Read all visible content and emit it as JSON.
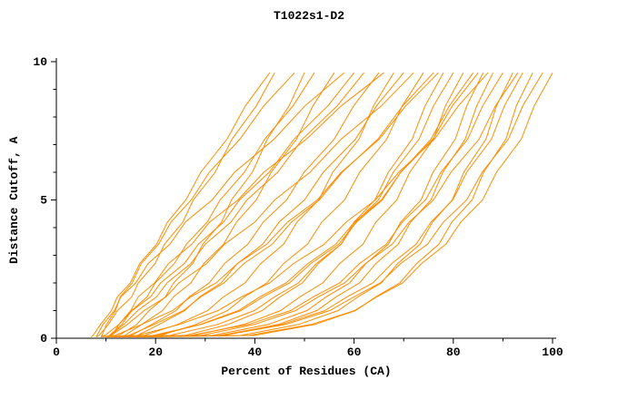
{
  "window": {
    "background": "#ffffff"
  },
  "chart_data": {
    "type": "line",
    "title": "T1022s1-D2",
    "xlabel": "Percent of Residues (CA)",
    "ylabel": "Distance Cutoff, A",
    "xlim": [
      0,
      100
    ],
    "ylim": [
      0,
      10
    ],
    "x_ticks": [
      0,
      20,
      40,
      60,
      80,
      100
    ],
    "x_minor_ticks": [
      10,
      30,
      50,
      70,
      90
    ],
    "y_ticks": [
      0,
      5,
      10
    ],
    "y_minor_ticks": [
      1,
      2,
      3,
      4,
      6,
      7,
      8,
      9
    ],
    "line_color": "#ff8c00",
    "axis_color": "#000000",
    "grid": false,
    "legend": false,
    "y": [
      0.05,
      0.1,
      0.5,
      1.0,
      1.5,
      2.0,
      2.7,
      3.4,
      4.2,
      5.0,
      6.0,
      7.2,
      8.4,
      9.6
    ],
    "series": [
      {
        "x": [
          8,
          8.6,
          10.5,
          12.3,
          15.2,
          16.5,
          19.9,
          21.8,
          25.5,
          27.6,
          32.0,
          35.4,
          40.3,
          44
        ]
      },
      {
        "x": [
          9,
          9.2,
          10.1,
          11.9,
          12.9,
          15.3,
          17.1,
          20.6,
          23.1,
          27.2,
          30.8,
          37.0,
          41.8,
          48
        ]
      },
      {
        "x": [
          10,
          10.7,
          13.2,
          15.2,
          18.3,
          19.9,
          23.8,
          26.2,
          30.4,
          33.0,
          37.9,
          42.0,
          47.7,
          52
        ]
      },
      {
        "x": [
          12,
          13.8,
          17.2,
          21.4,
          23.6,
          27.1,
          29.7,
          33.7,
          36.3,
          40.3,
          43.3,
          48.4,
          51.7,
          56
        ]
      },
      {
        "x": [
          8,
          8.2,
          9.4,
          11.7,
          13.0,
          16.0,
          18.5,
          22.9,
          26.0,
          31.4,
          35.9,
          43.9,
          50.1,
          58
        ]
      },
      {
        "x": [
          11,
          12.6,
          16.2,
          18.7,
          22.0,
          23.6,
          27.5,
          29.5,
          33.3,
          35.3,
          39.5,
          42.5,
          46.9,
          50
        ]
      },
      {
        "x": [
          10,
          10.9,
          13.6,
          16.4,
          20.2,
          22.3,
          27.1,
          30.0,
          35.2,
          38.4,
          44.6,
          49.6,
          56.6,
          62
        ]
      },
      {
        "x": [
          13,
          15.1,
          19.2,
          24.1,
          26.8,
          30.8,
          33.9,
          38.6,
          41.7,
          46.4,
          49.9,
          56.0,
          59.9,
          65
        ]
      },
      {
        "x": [
          12,
          17.7,
          24.4,
          30.5,
          33.7,
          38.0,
          41.2,
          45.8,
          48.5,
          52.9,
          55.7,
          61.0,
          63.9,
          68
        ]
      },
      {
        "x": [
          14,
          16.3,
          20.7,
          25.9,
          28.9,
          33.2,
          36.5,
          41.6,
          44.9,
          50.0,
          53.8,
          60.3,
          64.5,
          70
        ]
      },
      {
        "x": [
          10,
          11.0,
          14.3,
          17.7,
          22.1,
          24.7,
          30.3,
          33.9,
          40.0,
          44.0,
          51.1,
          57.4,
          65.5,
          72
        ]
      },
      {
        "x": [
          15,
          21.0,
          28.1,
          34.5,
          37.9,
          42.4,
          45.8,
          50.6,
          53.5,
          58.1,
          61.1,
          66.6,
          69.7,
          74
        ]
      },
      {
        "x": [
          12,
          14.6,
          19.7,
          25.6,
          29.1,
          33.8,
          37.8,
          43.5,
          47.4,
          53.0,
          57.6,
          64.8,
          69.8,
          76
        ]
      },
      {
        "x": [
          16,
          26.0,
          34.6,
          41.5,
          45.1,
          49.6,
          52.8,
          57.4,
          60.0,
          64.2,
          66.9,
          71.7,
          74.3,
          78
        ]
      },
      {
        "x": [
          11,
          11.2,
          12.6,
          15.0,
          16.5,
          19.8,
          22.6,
          27.3,
          30.9,
          36.6,
          41.8,
          50.4,
          57.4,
          66
        ]
      },
      {
        "x": [
          12,
          22.9,
          32.5,
          39.9,
          44.0,
          48.8,
          52.4,
          57.4,
          60.3,
          64.9,
          67.9,
          73.1,
          76.0,
          80
        ]
      },
      {
        "x": [
          14,
          27.7,
          37.8,
          45.2,
          49.1,
          53.7,
          57.1,
          61.8,
          64.4,
          68.6,
          71.2,
          76.0,
          78.4,
          82
        ]
      },
      {
        "x": [
          10,
          19.5,
          29.2,
          37.2,
          41.7,
          47.0,
          51.3,
          56.9,
          60.5,
          65.7,
          69.4,
          75.5,
          79.2,
          84
        ]
      },
      {
        "x": [
          13,
          31.5,
          42.7,
          50.5,
          54.4,
          59.1,
          62.4,
          66.9,
          69.4,
          73.5,
          75.9,
          80.4,
          82.7,
          86
        ]
      },
      {
        "x": [
          15,
          33.5,
          44.7,
          52.5,
          56.4,
          61.1,
          64.4,
          68.9,
          71.4,
          75.5,
          77.9,
          82.4,
          84.7,
          88
        ]
      },
      {
        "x": [
          11,
          27.0,
          38.7,
          47.2,
          51.8,
          57.1,
          61.1,
          66.5,
          69.7,
          74.4,
          77.5,
          82.9,
          85.9,
          90
        ]
      },
      {
        "x": [
          16,
          37.2,
          48.8,
          56.8,
          60.8,
          65.5,
          68.8,
          73.3,
          75.8,
          79.8,
          82.1,
          86.6,
          88.7,
          92
        ]
      },
      {
        "x": [
          12,
          32.8,
          45.4,
          54.1,
          58.6,
          63.8,
          67.6,
          72.5,
          75.5,
          79.9,
          82.7,
          87.7,
          90.3,
          94
        ]
      },
      {
        "x": [
          17,
          39.9,
          52.1,
          60.3,
          64.4,
          69.2,
          72.6,
          77.1,
          79.7,
          83.8,
          86.1,
          90.6,
          92.7,
          96
        ]
      },
      {
        "x": [
          14,
          33.5,
          46.2,
          55.1,
          60.0,
          65.3,
          69.4,
          74.8,
          78.0,
          82.7,
          85.8,
          91.1,
          94.0,
          98
        ]
      },
      {
        "x": [
          18,
          38.8,
          51.4,
          60.1,
          64.6,
          69.8,
          73.6,
          78.5,
          81.5,
          85.9,
          88.7,
          93.7,
          96.3,
          100
        ]
      },
      {
        "x": [
          13,
          20.3,
          29.0,
          36.7,
          41.0,
          46.3,
          50.7,
          56.3,
          60.1,
          65.5,
          69.4,
          75.9,
          79.8,
          85
        ]
      },
      {
        "x": [
          9,
          11.8,
          17.2,
          23.4,
          27.1,
          32.2,
          36.5,
          42.4,
          46.6,
          52.6,
          57.4,
          65.1,
          70.4,
          77
        ]
      },
      {
        "x": [
          17,
          29.2,
          39.9,
          48.2,
          52.8,
          58.1,
          62.3,
          67.7,
          71.1,
          76.0,
          79.5,
          85.2,
          88.5,
          93
        ]
      },
      {
        "x": [
          10,
          16.3,
          24.8,
          32.6,
          37.3,
          43.0,
          47.8,
          54.0,
          58.4,
          64.3,
          69.0,
          76.2,
          81.0,
          87
        ]
      },
      {
        "x": [
          7,
          7.4,
          8.9,
          11.1,
          12.3,
          14.9,
          16.8,
          20.2,
          22.4,
          26.1,
          29.1,
          34.4,
          38.1,
          43
        ]
      },
      {
        "x": [
          9,
          9.8,
          12.6,
          15.3,
          19.0,
          21.0,
          25.8,
          28.6,
          33.7,
          36.9,
          42.9,
          47.9,
          54.7,
          60
        ]
      }
    ]
  }
}
